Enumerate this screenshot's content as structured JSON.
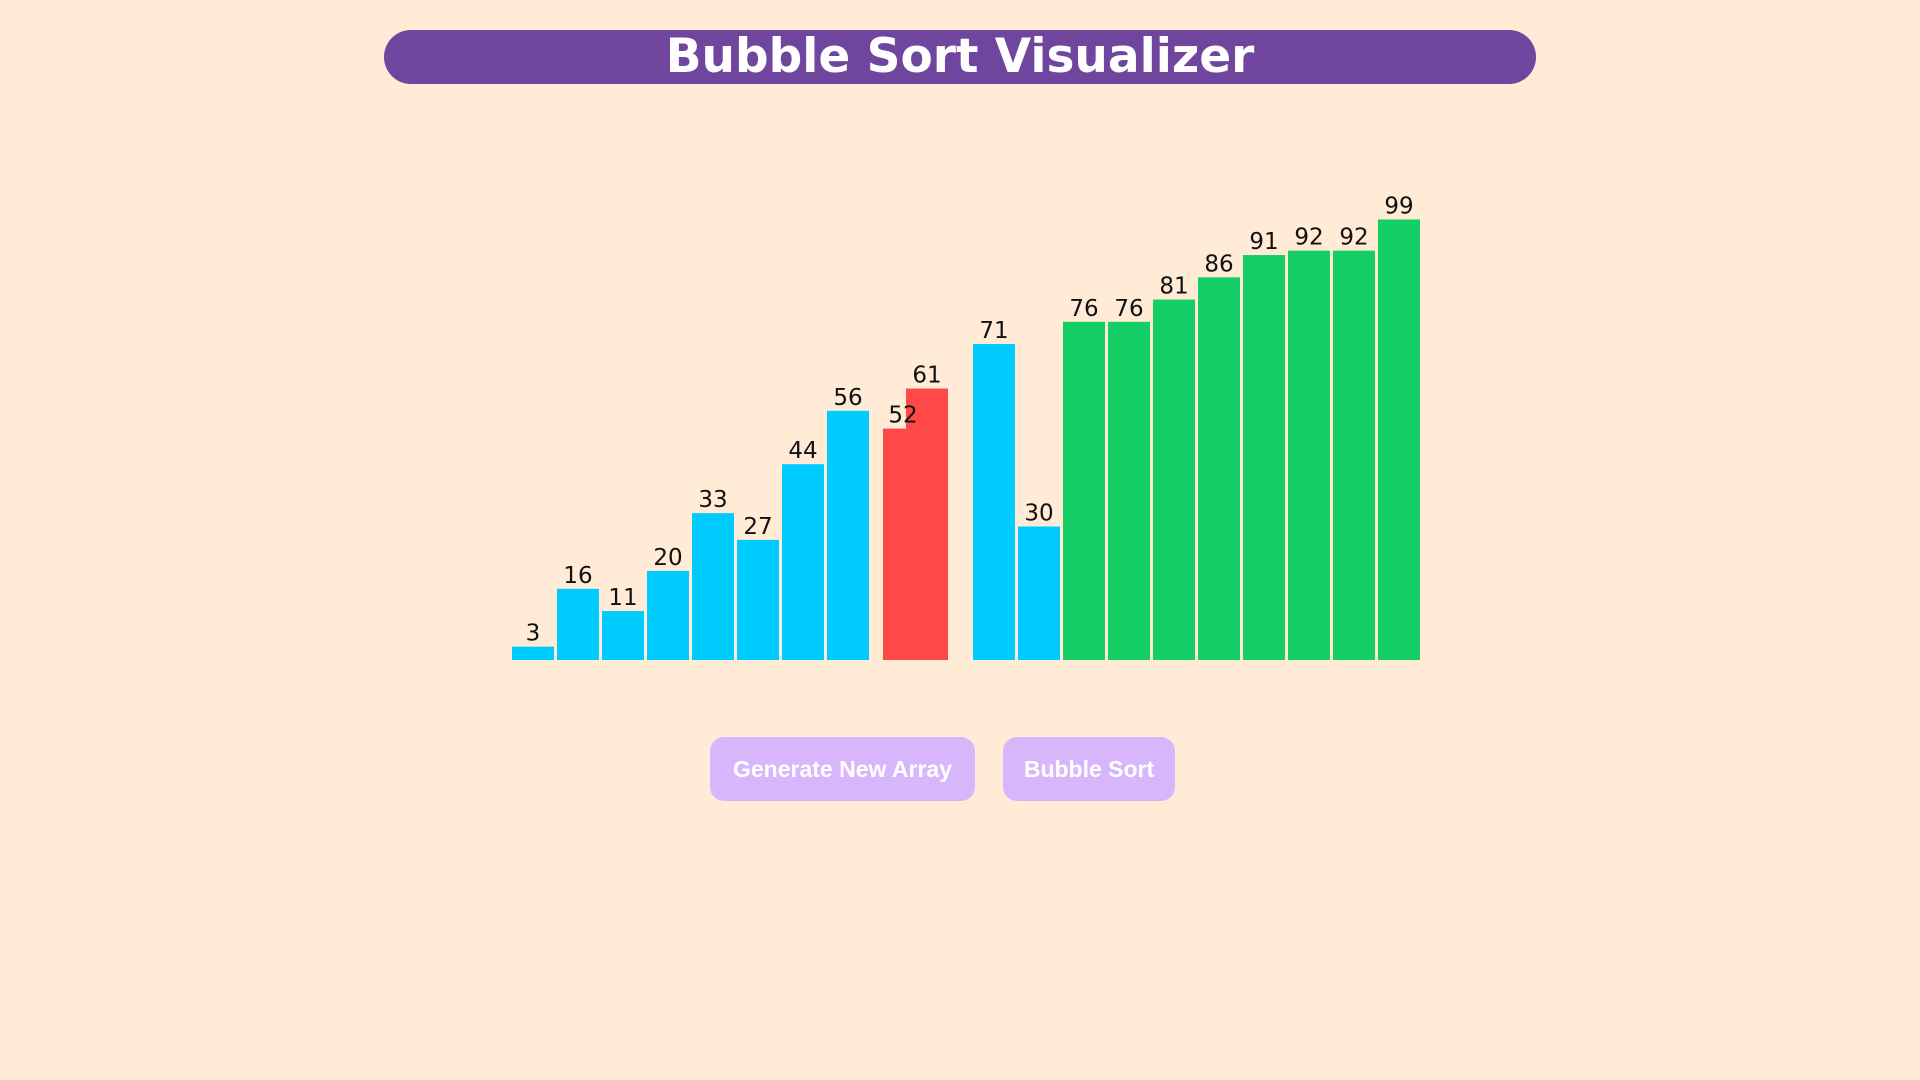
{
  "app": {
    "title": "Bubble Sort Visualizer"
  },
  "controls": {
    "generate_label": "Generate New Array",
    "sort_label": "Bubble Sort"
  },
  "colors": {
    "background": "#ffebd6",
    "title_bar": "#70459e",
    "unsorted": "#00cbfe",
    "comparing": "#ff4848",
    "sorted": "#13cf66",
    "button": "#d8b6fb",
    "button_text": "#ffffff"
  },
  "chart_data": {
    "type": "bar",
    "values": [
      3,
      16,
      11,
      20,
      33,
      27,
      44,
      56,
      52,
      61,
      71,
      30,
      76,
      76,
      81,
      86,
      91,
      92,
      92,
      99
    ],
    "states": [
      "unsorted",
      "unsorted",
      "unsorted",
      "unsorted",
      "unsorted",
      "unsorted",
      "unsorted",
      "unsorted",
      "comparing",
      "comparing",
      "unsorted",
      "unsorted",
      "sorted",
      "sorted",
      "sorted",
      "sorted",
      "sorted",
      "sorted",
      "sorted",
      "sorted"
    ],
    "comparing_indices": [
      8,
      9
    ],
    "ylim": [
      0,
      100
    ],
    "grid": false
  }
}
